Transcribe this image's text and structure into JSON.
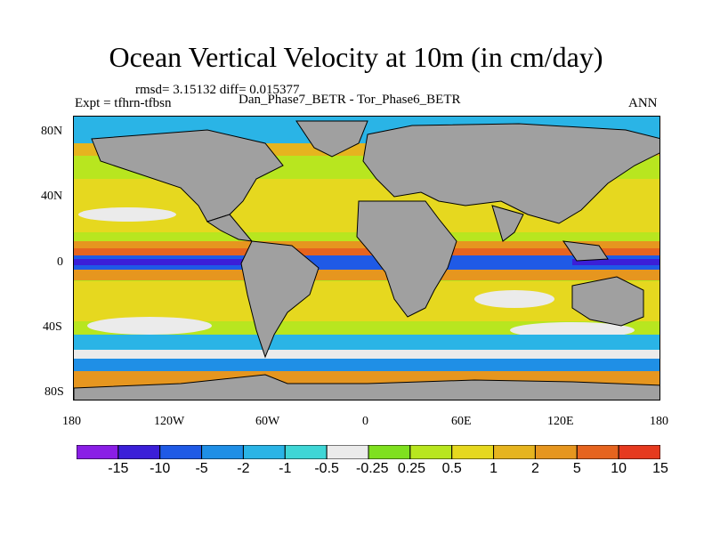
{
  "title": "Ocean Vertical Velocity at 10m (in cm/day)",
  "stats": "rmsd= 3.15132 diff= 0.015377",
  "experiment": "Expt = tfhrn-tfbsn",
  "case_label": "Dan_Phase7_BETR - Tor_Phase6_BETR",
  "season": "ANN",
  "lat_labels": [
    "80N",
    "40N",
    "0",
    "40S",
    "80S"
  ],
  "lat_values": [
    80,
    40,
    0,
    -40,
    -80
  ],
  "lon_labels": [
    "180",
    "120W",
    "60W",
    "0",
    "60E",
    "120E",
    "180"
  ],
  "lon_values": [
    -180,
    -120,
    -60,
    0,
    60,
    120,
    180
  ],
  "colorbar": {
    "colors": [
      "#8a1ee6",
      "#3b1fd8",
      "#1f5ae6",
      "#1f8fe6",
      "#2ab4e6",
      "#3fd6d6",
      "#ebebeb",
      "#7fe01f",
      "#b8e61f",
      "#e6d81f",
      "#e6b41f",
      "#e6961f",
      "#e6641f",
      "#e63a1f"
    ],
    "labels": [
      "-15",
      "-10",
      "-5",
      "-2",
      "-1",
      "-0.5",
      "-0.25",
      "0.25",
      "0.5",
      "1",
      "2",
      "5",
      "10",
      "15"
    ]
  },
  "land_color": "#a0a0a0"
}
